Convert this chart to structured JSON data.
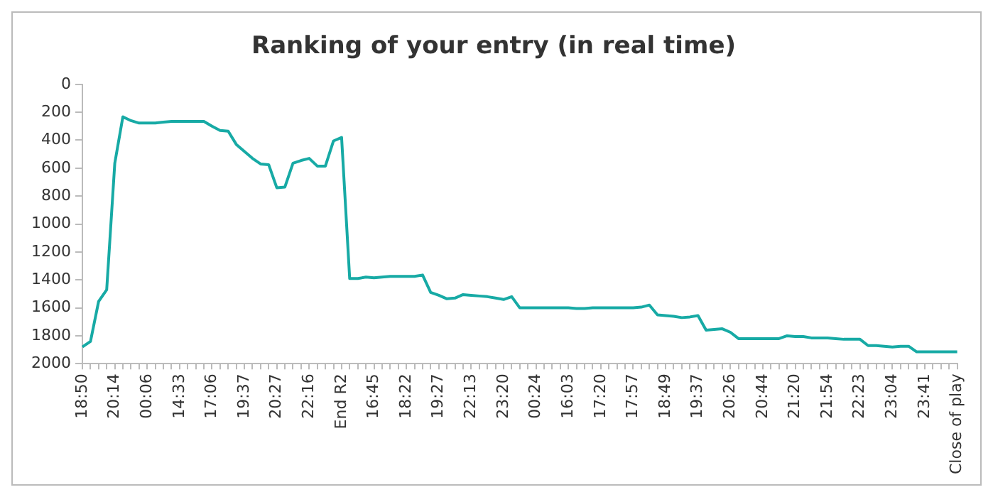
{
  "chart_data": {
    "type": "line",
    "title": "Ranking of your entry (in real time)",
    "categories": [
      "18:50",
      null,
      null,
      null,
      "20:14",
      null,
      null,
      null,
      "00:06",
      null,
      null,
      null,
      "14:33",
      null,
      null,
      null,
      "17:06",
      null,
      null,
      null,
      "19:37",
      null,
      null,
      null,
      "20:27",
      null,
      null,
      null,
      "22:16",
      null,
      null,
      null,
      "End R2",
      null,
      null,
      null,
      "16:45",
      null,
      null,
      null,
      "18:22",
      null,
      null,
      null,
      "19:27",
      null,
      null,
      null,
      "22:13",
      null,
      null,
      null,
      "23:20",
      null,
      null,
      null,
      "00:24",
      null,
      null,
      null,
      "16:03",
      null,
      null,
      null,
      "17:20",
      null,
      null,
      null,
      "17:57",
      null,
      null,
      null,
      "18:49",
      null,
      null,
      null,
      "19:37",
      null,
      null,
      null,
      "20:26",
      null,
      null,
      null,
      "20:44",
      null,
      null,
      null,
      "21:20",
      null,
      null,
      null,
      "21:54",
      null,
      null,
      null,
      "22:23",
      null,
      null,
      null,
      "23:04",
      null,
      null,
      null,
      "23:41",
      null,
      null,
      null,
      "Close of play"
    ],
    "series": [
      {
        "color": "#17aaa5",
        "values": [
          1880,
          1840,
          1555,
          1470,
          565,
          232,
          260,
          277,
          277,
          277,
          270,
          265,
          265,
          265,
          265,
          265,
          300,
          330,
          335,
          430,
          480,
          530,
          570,
          575,
          740,
          735,
          565,
          545,
          530,
          585,
          585,
          405,
          380,
          1390,
          1390,
          1380,
          1385,
          1380,
          1375,
          1375,
          1375,
          1375,
          1365,
          1490,
          1510,
          1535,
          1530,
          1505,
          1510,
          1515,
          1520,
          1530,
          1540,
          1520,
          1600,
          1600,
          1600,
          1600,
          1600,
          1600,
          1600,
          1605,
          1605,
          1600,
          1600,
          1600,
          1600,
          1600,
          1600,
          1595,
          1580,
          1650,
          1655,
          1660,
          1670,
          1665,
          1655,
          1760,
          1755,
          1750,
          1775,
          1820,
          1820,
          1820,
          1820,
          1820,
          1820,
          1800,
          1805,
          1805,
          1815,
          1815,
          1815,
          1820,
          1825,
          1825,
          1825,
          1870,
          1870,
          1875,
          1880,
          1875,
          1875,
          1915,
          1915,
          1915,
          1915,
          1915,
          1915
        ]
      }
    ],
    "ylim": [
      2000,
      0
    ],
    "yticks": [
      0,
      200,
      400,
      600,
      800,
      1000,
      1200,
      1400,
      1600,
      1800,
      2000
    ],
    "grid": false,
    "legend": false,
    "marker": "none",
    "line_style": "solid"
  }
}
